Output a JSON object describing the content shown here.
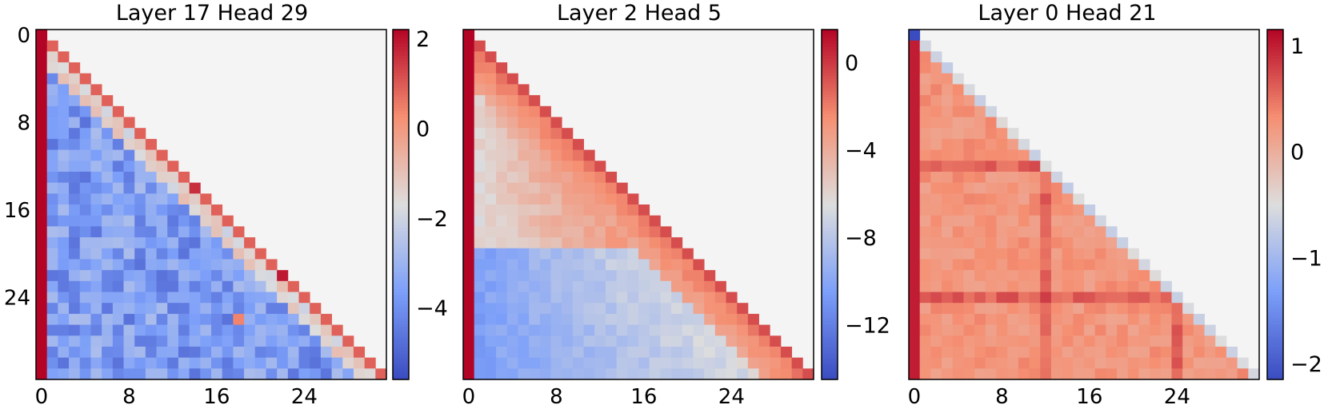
{
  "chart_data": [
    {
      "type": "heatmap",
      "title": "Layer 17 Head 29",
      "n": 32,
      "x_ticks": [
        0,
        8,
        16,
        24
      ],
      "y_ticks": [
        0,
        8,
        16,
        24
      ],
      "colorbar": {
        "colormap": "coolwarm",
        "vmin": -5.6,
        "vmax": 2.2,
        "ticks": [
          2,
          0,
          -2,
          -4
        ],
        "tick_labels": [
          "2",
          "0",
          "−2",
          "−4"
        ]
      },
      "mask_upper_triangle": true,
      "first_column_value": 2.2,
      "diagonal_value": 0.9,
      "near_diagonal_value": -1.5,
      "body_value": -3.7,
      "highlights": [
        {
          "row": 14,
          "col": 14,
          "value": 1.6
        },
        {
          "row": 22,
          "col": 22,
          "value": 1.9
        },
        {
          "row": 26,
          "col": 18,
          "value": 0.4
        }
      ]
    },
    {
      "type": "heatmap",
      "title": "Layer 2 Head 5",
      "n": 32,
      "x_ticks": [
        0,
        8,
        16,
        24
      ],
      "y_ticks": [],
      "colorbar": {
        "colormap": "coolwarm",
        "vmin": -14.5,
        "vmax": 1.5,
        "ticks": [
          0,
          -4,
          -8,
          -12
        ],
        "tick_labels": [
          "0",
          "−4",
          "−8",
          "−12"
        ]
      },
      "mask_upper_triangle": true,
      "first_column_value": 1.5,
      "diagonal_value": -0.6,
      "band_value": -1.5,
      "upper_body_value": -6.5,
      "lower_body_value": -10.5,
      "lower_block_start_row": 20,
      "highlights": []
    },
    {
      "type": "heatmap",
      "title": "Layer 0 Head 21",
      "n": 32,
      "x_ticks": [
        0,
        8,
        16,
        24
      ],
      "y_ticks": [],
      "colorbar": {
        "colormap": "coolwarm",
        "vmin": -2.15,
        "vmax": 1.15,
        "ticks": [
          1,
          0,
          -1,
          -2
        ],
        "tick_labels": [
          "1",
          "0",
          "−1",
          "−2"
        ]
      },
      "mask_upper_triangle": true,
      "corner_value": -2.15,
      "first_column_value": 1.0,
      "body_value": 0.25,
      "diagonal_value": -0.6,
      "strong_rows": [
        12,
        24
      ],
      "strong_cols": [
        12,
        24
      ],
      "highlights": []
    }
  ]
}
